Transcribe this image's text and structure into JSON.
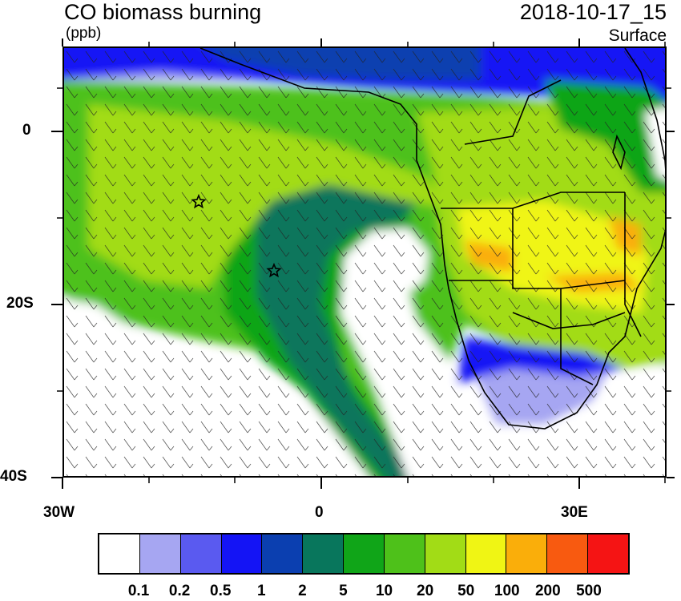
{
  "title": "CO biomass burning",
  "units": "(ppb)",
  "datetime": "2018-10-17_15",
  "level": "Surface",
  "lat_labels": [
    "0",
    "20S",
    "40S"
  ],
  "lon_labels": [
    "30W",
    "0",
    "30E"
  ],
  "colorbar": {
    "labels": [
      "0.1",
      "0.2",
      "0.5",
      "1",
      "2",
      "5",
      "10",
      "20",
      "50",
      "100",
      "200",
      "500"
    ],
    "colors": [
      "#ffffff",
      "#a6a6f2",
      "#5a5af0",
      "#1414f5",
      "#0b3fb0",
      "#08765c",
      "#10a518",
      "#4ec11a",
      "#a2dc16",
      "#f0f514",
      "#faae0a",
      "#f85a10",
      "#f51414"
    ]
  },
  "markers": [
    "star",
    "star"
  ]
}
